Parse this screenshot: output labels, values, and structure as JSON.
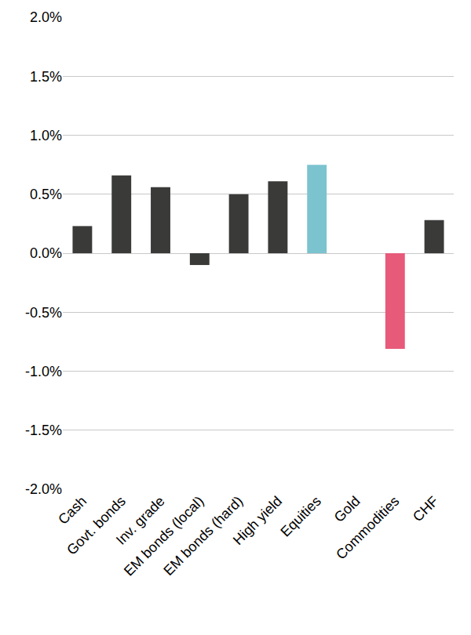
{
  "chart_data": {
    "type": "bar",
    "categories": [
      "Cash",
      "Govt. bonds",
      "Inv. grade",
      "EM bonds (local)",
      "EM bonds (hard)",
      "High yield",
      "Equities",
      "Gold",
      "Commodities",
      "CHF"
    ],
    "values": [
      0.23,
      0.66,
      0.56,
      -0.1,
      0.5,
      0.61,
      0.75,
      0,
      -0.81,
      0.28
    ],
    "colors": [
      "#3a3b39",
      "#3a3b39",
      "#3a3b39",
      "#3a3b39",
      "#3a3b39",
      "#3a3b39",
      "#7cc3d0",
      "#3a3b39",
      "#e75a7a",
      "#3a3b39"
    ],
    "ylim": [
      -2.0,
      2.0
    ],
    "yticks": [
      {
        "value": -2.0,
        "label": "-2.0%"
      },
      {
        "value": -1.5,
        "label": "-1.5%"
      },
      {
        "value": -1.0,
        "label": "-1.0%"
      },
      {
        "value": -0.5,
        "label": "-0.5%"
      },
      {
        "value": 0.0,
        "label": "0.0%"
      },
      {
        "value": 0.5,
        "label": "0.5%"
      },
      {
        "value": 1.0,
        "label": "1.0%"
      },
      {
        "value": 1.5,
        "label": "1.5%"
      },
      {
        "value": 2.0,
        "label": "2.0%"
      }
    ],
    "grid": true
  }
}
